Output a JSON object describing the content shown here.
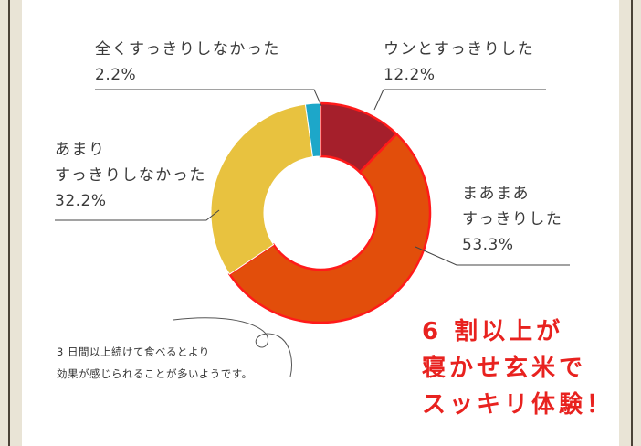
{
  "chart_data": {
    "type": "pie",
    "categories": [
      "ウンとすっきりした",
      "まあまあすっきりした",
      "あまりすっきりしなかった",
      "全くすっきりしなかった"
    ],
    "values": [
      12.2,
      53.3,
      32.2,
      2.2
    ],
    "value_labels": [
      "12.2%",
      "53.3%",
      "32.2%",
      "2.2%"
    ],
    "colors": [
      "#a51f2b",
      "#e24e0b",
      "#e8c23f",
      "#1da7c9"
    ],
    "highlight_stroke": "#ff1a1a",
    "labels": {
      "zentaku": [
        "全くすっきりしなかった"
      ],
      "unto": [
        "ウンとすっきりした"
      ],
      "amari": [
        "あまり",
        "すっきりしなかった"
      ],
      "maamaa": [
        "まあまあ",
        "すっきりした"
      ]
    }
  },
  "note": {
    "line1": "3 日間以上続けて食べるとより",
    "line2": "効果が感じられることが多いようです。"
  },
  "headline": {
    "line1": "6 割以上が",
    "line2": "寝かせ玄米で",
    "line3": "スッキリ体験！"
  }
}
